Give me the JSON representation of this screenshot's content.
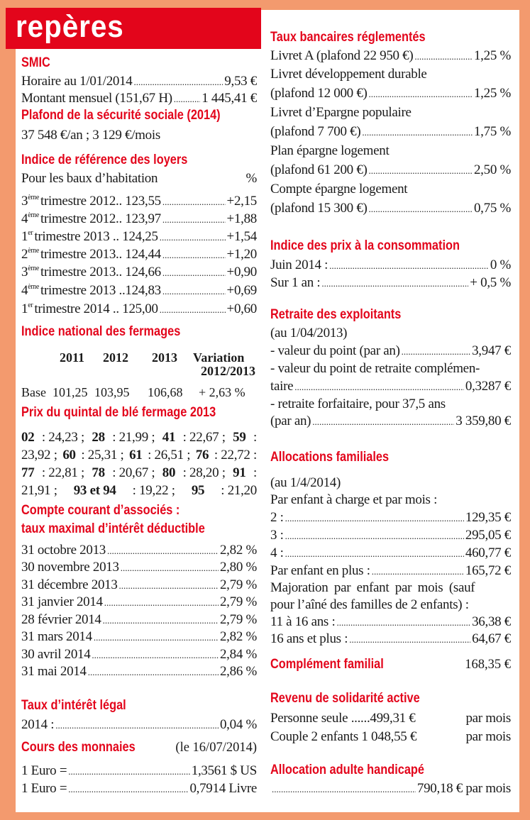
{
  "header": {
    "title": "repères"
  },
  "colors": {
    "accent_red": "#e3051b",
    "border_orange": "#f39a6e"
  },
  "left": [
    {
      "id": "smic",
      "heading": "SMIC",
      "lines": [
        {
          "k": "lv",
          "label": "Horaire au 1/01/2014",
          "value": "9,53 €"
        },
        {
          "k": "lv",
          "label": "Montant mensuel (151,67 H)",
          "value": "1 445,41 €"
        }
      ]
    },
    {
      "id": "plafond",
      "heading": "Plafond de la sécurité sociale (2014)",
      "lines": [
        {
          "k": "t",
          "text": "37 548 €/an ; 3 129 €/mois"
        }
      ]
    },
    {
      "id": "irl",
      "heading": "Indice de référence des loyers",
      "lines": [
        {
          "k": "lv2",
          "label": "Pour les baux d’habitation",
          "value": "%"
        },
        {
          "k": "sup",
          "ord": "3",
          "sup": "ème",
          "label": "trimestre 2012.. 123,55",
          "value": "+2,15"
        },
        {
          "k": "sup",
          "ord": "4",
          "sup": "ème",
          "label": "trimestre 2012.. 123,97",
          "value": "+1,88"
        },
        {
          "k": "sup",
          "ord": "1",
          "sup": "er",
          "label": "trimestre 2013 .. 124,25",
          "value": "+1,54"
        },
        {
          "k": "sup",
          "ord": "2",
          "sup": "ème",
          "label": "trimestre 2013.. 124,44",
          "value": "+1,20"
        },
        {
          "k": "sup",
          "ord": "3",
          "sup": "ème",
          "label": "trimestre 2013.. 124,66",
          "value": "+0,90"
        },
        {
          "k": "sup",
          "ord": "4",
          "sup": "ème",
          "label": "trimestre 2013 ..124,83",
          "value": "+0,69"
        },
        {
          "k": "sup",
          "ord": "1",
          "sup": "er",
          "label": "trimestre 2014 .. 125,00",
          "value": "+0,60"
        }
      ]
    },
    {
      "id": "fermages",
      "heading": "Indice national des fermages",
      "table": {
        "headers": [
          "2011",
          "2012",
          "2013",
          "Variation",
          "2012/2013"
        ],
        "row": [
          "Base",
          "101,25",
          "103,95",
          "106,68",
          "+ 2,63 %"
        ]
      },
      "lines": []
    },
    {
      "id": "ble",
      "heading": "Prix du quintal de blé fermage 2013",
      "lines": [
        {
          "k": "seg",
          "segs": [
            [
              "02",
              true
            ],
            [
              " : 24,23 ; ",
              false
            ],
            [
              "28",
              true
            ],
            [
              " : 21,99 ; ",
              false
            ],
            [
              "41",
              true
            ],
            [
              " : 22,67 ; ",
              false
            ],
            [
              "59",
              true
            ],
            [
              " :",
              false
            ]
          ]
        },
        {
          "k": "seg",
          "segs": [
            [
              "23,92 ; ",
              false
            ],
            [
              "60",
              true
            ],
            [
              " : 25,31 ; ",
              false
            ],
            [
              "61",
              true
            ],
            [
              " : 26,51 ; ",
              false
            ],
            [
              "76",
              true
            ],
            [
              " : 22,72 :",
              false
            ]
          ]
        },
        {
          "k": "seg",
          "segs": [
            [
              "77",
              true
            ],
            [
              " : 22,81 ; ",
              false
            ],
            [
              "78",
              true
            ],
            [
              " : 20,67 ; ",
              false
            ],
            [
              "80",
              true
            ],
            [
              " : 28,20 ; ",
              false
            ],
            [
              "91",
              true
            ],
            [
              " :",
              false
            ]
          ]
        },
        {
          "k": "seg",
          "segs": [
            [
              "21,91 ; ",
              false
            ],
            [
              "93 et 94",
              true
            ],
            [
              " : 19,22 ; ",
              false
            ],
            [
              "95",
              true
            ],
            [
              " : 21,20",
              false
            ]
          ]
        }
      ]
    },
    {
      "id": "compte",
      "heading": "Compte courant d’associés :",
      "heading2": "taux maximal d’intérêt déductible",
      "lines": [
        {
          "k": "lv",
          "label": "31 octobre 2013",
          "value": "2,82 %"
        },
        {
          "k": "lv",
          "label": "30 novembre 2013",
          "value": "2,80 %"
        },
        {
          "k": "lv",
          "label": "31 décembre 2013",
          "value": "2,79 %"
        },
        {
          "k": "lv",
          "label": "31 janvier 2014",
          "value": "2,79 %"
        },
        {
          "k": "lv",
          "label": "28 février 2014",
          "value": "2,79 %"
        },
        {
          "k": "lv",
          "label": "31 mars 2014",
          "value": "2,82 %"
        },
        {
          "k": "lv",
          "label": "30 avril 2014",
          "value": "2,84 %"
        },
        {
          "k": "lv",
          "label": "31 mai 2014",
          "value": "2,86 %"
        }
      ]
    },
    {
      "id": "legal",
      "heading": "Taux d’intérêt légal",
      "lines": [
        {
          "k": "lv",
          "label": "2014 :",
          "value": "0,04 %"
        }
      ]
    },
    {
      "id": "monnaies",
      "heading": "Cours des monnaies",
      "aside": "(le 16/07/2014)",
      "lines": [
        {
          "k": "lv",
          "label": "1 Euro =",
          "value": "1,3561 $ US"
        },
        {
          "k": "lv",
          "label": "1 Euro =",
          "value": "0,7914 Livre"
        }
      ]
    }
  ],
  "right": [
    {
      "id": "taux",
      "heading": "Taux bancaires réglementés",
      "lines": [
        {
          "k": "lv",
          "label": "Livret A (plafond 22 950 €)",
          "value": "1,25 %"
        },
        {
          "k": "t",
          "text": "Livret développement durable"
        },
        {
          "k": "lv",
          "label": "(plafond 12 000 €)",
          "value": "1,25 %"
        },
        {
          "k": "t",
          "text": "Livret d’Epargne populaire"
        },
        {
          "k": "lv",
          "label": "(plafond 7 700  €)",
          "value": "1,75 %"
        },
        {
          "k": "t",
          "text": "Plan épargne logement"
        },
        {
          "k": "lv",
          "label": "(plafond 61 200 €)",
          "value": "2,50 %"
        },
        {
          "k": "t",
          "text": "Compte épargne logement"
        },
        {
          "k": "lv",
          "label": "(plafond 15 300 €)",
          "value": "0,75 %"
        }
      ]
    },
    {
      "id": "ipc",
      "heading": "Indice des prix à la consommation",
      "lines": [
        {
          "k": "lv",
          "label": "Juin 2014  :",
          "value": "0 %"
        },
        {
          "k": "lv",
          "label": "Sur 1 an :",
          "value": "+ 0,5 %"
        }
      ]
    },
    {
      "id": "retraite",
      "heading": "Retraite des exploitants",
      "lines": [
        {
          "k": "t",
          "text": "(au 1/04/2013)"
        },
        {
          "k": "lv",
          "label": "- valeur du point (par an)",
          "value": "3,947 €"
        },
        {
          "k": "t",
          "text": "- valeur du point de retraite complémen-"
        },
        {
          "k": "lv",
          "label": "taire",
          "value": "0,3287 €"
        },
        {
          "k": "t",
          "text": "- retraite forfaitaire, pour 37,5 ans"
        },
        {
          "k": "lv",
          "label": "(par an)",
          "value": "3 359,80 €"
        }
      ]
    },
    {
      "id": "alloc",
      "heading": "Allocations  familiales",
      "lines": [
        {
          "k": "t",
          "text": "(au 1/4/2014)"
        },
        {
          "k": "t",
          "text": "Par enfant à charge et par mois :"
        },
        {
          "k": "lv",
          "label": "2 :",
          "value": "129,35 €"
        },
        {
          "k": "lv",
          "label": "3 :",
          "value": "295,05 €"
        },
        {
          "k": "lv",
          "label": "4 :",
          "value": "460,77 €"
        },
        {
          "k": "lv",
          "label": "Par enfant en plus :",
          "value": "165,72 €"
        },
        {
          "k": "t",
          "text": "Majoration par enfant par mois (sauf"
        },
        {
          "k": "t",
          "text": "pour l’aîné des familles de 2 enfants) :"
        },
        {
          "k": "lv",
          "label": "11 à 16 ans :",
          "value": "36,38 €"
        },
        {
          "k": "lv",
          "label": "16 ans et plus :",
          "value": "64,67 €"
        }
      ]
    },
    {
      "id": "complement",
      "heading": "Complément familial",
      "aside": "168,35 €",
      "lines": []
    },
    {
      "id": "rsa",
      "heading": "Revenu de solidarité active",
      "lines": [
        {
          "k": "lv2",
          "label": "Personne seule ......499,31 €",
          "value": "par mois"
        },
        {
          "k": "lv2",
          "label": "Couple 2 enfants 1 048,55 €",
          "value": "par mois"
        }
      ]
    },
    {
      "id": "aah",
      "heading": "Allocation adulte handicapé",
      "lines": [
        {
          "k": "lv",
          "label": "",
          "value": "790,18 €   par mois"
        }
      ]
    }
  ]
}
